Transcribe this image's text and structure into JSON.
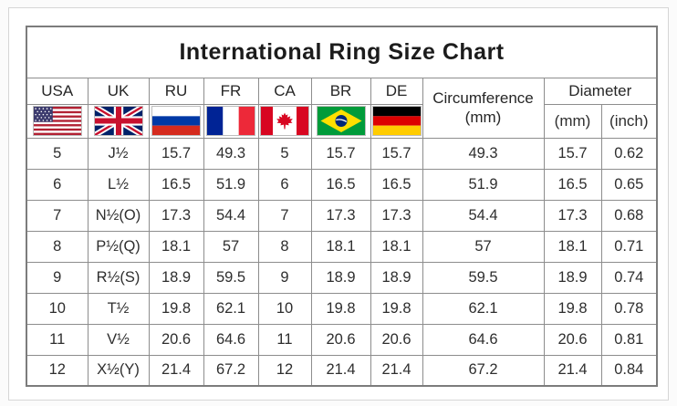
{
  "title": "International Ring Size Chart",
  "header": {
    "countries": [
      {
        "code": "USA",
        "flag_icon": "usa-flag-icon"
      },
      {
        "code": "UK",
        "flag_icon": "uk-flag-icon"
      },
      {
        "code": "RU",
        "flag_icon": "russia-flag-icon"
      },
      {
        "code": "FR",
        "flag_icon": "france-flag-icon"
      },
      {
        "code": "CA",
        "flag_icon": "canada-flag-icon"
      },
      {
        "code": "BR",
        "flag_icon": "brazil-flag-icon"
      },
      {
        "code": "DE",
        "flag_icon": "germany-flag-icon"
      }
    ],
    "circumference_label": "Circumference",
    "circumference_unit": "(mm)",
    "diameter_label": "Diameter",
    "diameter_units": [
      "(mm)",
      "(inch)"
    ]
  },
  "chart_data": {
    "type": "table",
    "title": "International Ring Size Chart",
    "columns": [
      "USA",
      "UK",
      "RU",
      "FR",
      "CA",
      "BR",
      "DE",
      "Circumference (mm)",
      "Diameter (mm)",
      "Diameter (inch)"
    ],
    "rows": [
      [
        "5",
        "J½",
        "15.7",
        "49.3",
        "5",
        "15.7",
        "15.7",
        "49.3",
        "15.7",
        "0.62"
      ],
      [
        "6",
        "L½",
        "16.5",
        "51.9",
        "6",
        "16.5",
        "16.5",
        "51.9",
        "16.5",
        "0.65"
      ],
      [
        "7",
        "N½(O)",
        "17.3",
        "54.4",
        "7",
        "17.3",
        "17.3",
        "54.4",
        "17.3",
        "0.68"
      ],
      [
        "8",
        "P½(Q)",
        "18.1",
        "57",
        "8",
        "18.1",
        "18.1",
        "57",
        "18.1",
        "0.71"
      ],
      [
        "9",
        "R½(S)",
        "18.9",
        "59.5",
        "9",
        "18.9",
        "18.9",
        "59.5",
        "18.9",
        "0.74"
      ],
      [
        "10",
        "T½",
        "19.8",
        "62.1",
        "10",
        "19.8",
        "19.8",
        "62.1",
        "19.8",
        "0.78"
      ],
      [
        "11",
        "V½",
        "20.6",
        "64.6",
        "11",
        "20.6",
        "20.6",
        "64.6",
        "20.6",
        "0.81"
      ],
      [
        "12",
        "X½(Y)",
        "21.4",
        "67.2",
        "12",
        "21.4",
        "21.4",
        "67.2",
        "21.4",
        "0.84"
      ]
    ],
    "legend_position": "none",
    "grid": true
  },
  "colors": {
    "grid_border": "#8d8d8d",
    "outer_border": "#7c7c7c",
    "frame_border": "#d6d6d6",
    "text": "#2e2e2e",
    "title_text": "#1c1c1c",
    "background": "#ffffff"
  }
}
